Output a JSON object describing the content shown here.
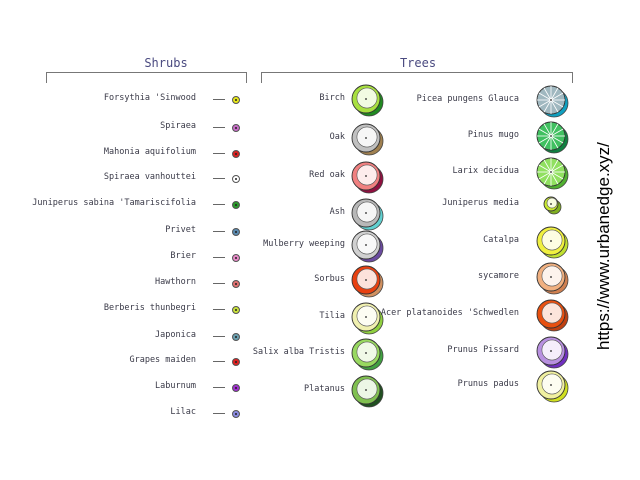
{
  "sections": {
    "shrubs_title": "Shrubs",
    "trees_title": "Trees"
  },
  "shrubs": [
    {
      "label": "Forsythia 'Sinwood",
      "color": "#e6e619"
    },
    {
      "label": "Spiraea",
      "color": "#c86ec8"
    },
    {
      "label": "Mahonia aquifolium",
      "color": "#d82020"
    },
    {
      "label": "Spiraea vanhouttei",
      "color": "#ffffff"
    },
    {
      "label": "Juniperus sabina 'Tamariscifolia",
      "color": "#2a9a2a"
    },
    {
      "label": "Privet",
      "color": "#5a8ab0"
    },
    {
      "label": "Brier",
      "color": "#e88ac8"
    },
    {
      "label": "Hawthorn",
      "color": "#e07070"
    },
    {
      "label": "Berberis thunbegri",
      "color": "#c8e03a"
    },
    {
      "label": "Japonica",
      "color": "#6aa0b0"
    },
    {
      "label": "Grapes maiden",
      "color": "#e02020"
    },
    {
      "label": "Laburnum",
      "color": "#a030d0"
    },
    {
      "label": "Lilac",
      "color": "#8a8ae0"
    }
  ],
  "trees_left": [
    {
      "label": "Birch",
      "fill": "#a8e040",
      "shadow": "#208a20",
      "pattern": "plain"
    },
    {
      "label": "Oak",
      "fill": "#c0c0c0",
      "shadow": "#a08050",
      "pattern": "plain"
    },
    {
      "label": "Red oak",
      "fill": "#f08080",
      "shadow": "#901040",
      "pattern": "plain"
    },
    {
      "label": "Ash",
      "fill": "#b8b8b8",
      "shadow": "#60d0d0",
      "pattern": "plain"
    },
    {
      "label": "Mulberry weeping",
      "fill": "#d0d0d0",
      "shadow": "#6a4aa0",
      "pattern": "plain"
    },
    {
      "label": "Sorbus",
      "fill": "#e84010",
      "shadow": "#d09060",
      "pattern": "plain"
    },
    {
      "label": "Tilia",
      "fill": "#f0f0b0",
      "shadow": "#90d040",
      "pattern": "plain"
    },
    {
      "label": "Salix alba Tristis",
      "fill": "#98d860",
      "shadow": "#40a040",
      "pattern": "plain"
    },
    {
      "label": "Platanus",
      "fill": "#80c050",
      "shadow": "#205020",
      "pattern": "plain"
    }
  ],
  "trees_right": [
    {
      "label": "Picea pungens Glauca",
      "fill": "#a0b8c0",
      "shadow": "#10a0c0",
      "pattern": "conifer"
    },
    {
      "label": "Pinus mugo",
      "fill": "#40c060",
      "shadow": "#108040",
      "pattern": "conifer"
    },
    {
      "label": "Larix decidua",
      "fill": "#90e060",
      "shadow": "#50b030",
      "pattern": "conifer"
    },
    {
      "label": "Juniperus media",
      "fill": "#c8e830",
      "shadow": "#80b020",
      "pattern": "small"
    },
    {
      "label": "Catalpa",
      "fill": "#f0f040",
      "shadow": "#c0e030",
      "pattern": "plain"
    },
    {
      "label": "sycamore",
      "fill": "#f0b080",
      "shadow": "#d08050",
      "pattern": "plain"
    },
    {
      "label": "Acer platanoides 'Schwedlen",
      "fill": "#e85010",
      "shadow": "#c04010",
      "pattern": "plain"
    },
    {
      "label": "Prunus Pissard",
      "fill": "#b890e0",
      "shadow": "#7030c0",
      "pattern": "plain"
    },
    {
      "label": "Prunus padus",
      "fill": "#f0f0a0",
      "shadow": "#d0e020",
      "pattern": "plain"
    }
  ],
  "watermark": "https://www.urbanedge.xyz/"
}
